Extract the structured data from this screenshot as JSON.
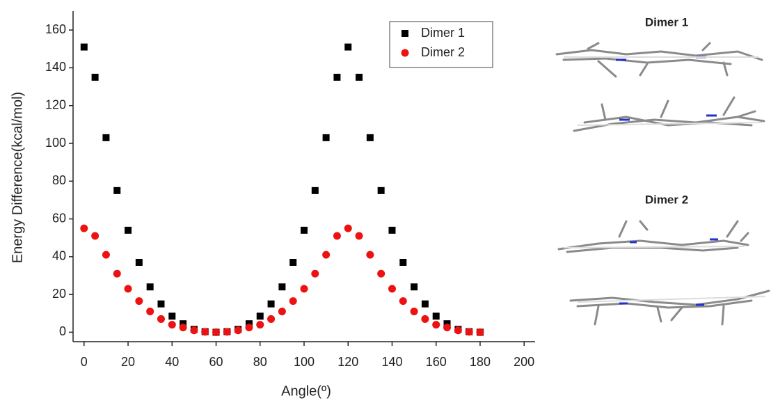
{
  "chart_data": {
    "type": "scatter",
    "xlabel": "Angle(º)",
    "ylabel": "Energy Difference(kcal/mol)",
    "x": [
      0,
      5,
      10,
      15,
      20,
      25,
      30,
      35,
      40,
      45,
      50,
      55,
      60,
      65,
      70,
      75,
      80,
      85,
      90,
      95,
      100,
      105,
      110,
      115,
      120,
      125,
      130,
      135,
      140,
      145,
      150,
      155,
      160,
      165,
      170,
      175,
      180
    ],
    "series": [
      {
        "name": "Dimer 1",
        "color": "#000000",
        "marker": "square",
        "values": [
          151,
          135,
          103,
          75,
          54,
          37,
          24,
          15,
          8.5,
          4.5,
          1.5,
          0.3,
          0,
          0.3,
          1.5,
          4.5,
          8.5,
          15,
          24,
          37,
          54,
          75,
          103,
          135,
          151,
          135,
          103,
          75,
          54,
          37,
          24,
          15,
          8.5,
          4.5,
          1.5,
          0.3,
          0
        ]
      },
      {
        "name": "Dimer 2",
        "color": "#ee1111",
        "marker": "circle",
        "values": [
          55,
          51,
          41,
          31,
          23,
          16.5,
          11,
          7,
          4,
          2.5,
          1,
          0.2,
          0,
          0.2,
          1,
          2.5,
          4,
          7,
          11,
          16.5,
          23,
          31,
          41,
          51,
          55,
          51,
          41,
          31,
          23,
          16.5,
          11,
          7,
          4,
          2.5,
          1,
          0.2,
          0
        ]
      }
    ],
    "xlim": [
      -5,
      205
    ],
    "xticks": [
      0,
      20,
      40,
      60,
      80,
      100,
      120,
      140,
      160,
      180,
      200
    ],
    "ylim": [
      -5,
      170
    ],
    "yticks": [
      0,
      20,
      40,
      60,
      80,
      100,
      120,
      140,
      160
    ],
    "legend": "upper right",
    "panel_labels": [
      "Dimer 1",
      "Dimer 2"
    ]
  }
}
